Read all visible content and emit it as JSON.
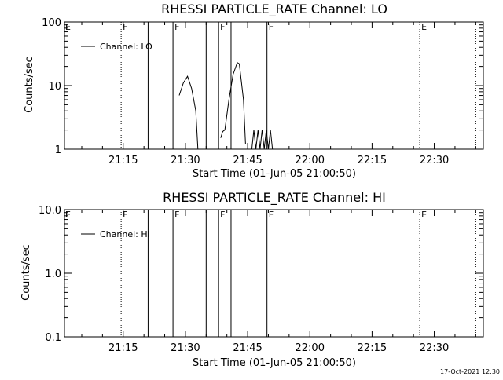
{
  "timestamp": "17-Oct-2021 12:30",
  "chart_data": [
    {
      "type": "line",
      "title": "RHESSI PARTICLE_RATE Channel: LO",
      "xlabel": "Start Time (01-Jun-05 21:00:50)",
      "ylabel": "Counts/sec",
      "yscale": "log",
      "ylim": [
        1,
        100
      ],
      "ytick_values": [
        1,
        10,
        100
      ],
      "ytick_labels": [
        "1",
        "10",
        "100"
      ],
      "xlim": [
        "21:00:50",
        "22:41:50"
      ],
      "xtick_labels": [
        "21:15",
        "21:30",
        "21:45",
        "22:00",
        "22:15",
        "22:30"
      ],
      "legend": {
        "label": "Channel: LO",
        "position": "top-left"
      },
      "flags": [
        {
          "label": "E",
          "time": "21:00:50",
          "style": "none"
        },
        {
          "label": "F",
          "time": "21:14:30",
          "style": "dotted"
        },
        {
          "label": "",
          "time": "21:21:00",
          "style": "solid"
        },
        {
          "label": "F",
          "time": "21:27:00",
          "style": "solid"
        },
        {
          "label": "",
          "time": "21:35:00",
          "style": "solid"
        },
        {
          "label": "F",
          "time": "21:38:00",
          "style": "solid"
        },
        {
          "label": "",
          "time": "21:41:00",
          "style": "solid"
        },
        {
          "label": "F",
          "time": "21:49:40",
          "style": "solid"
        },
        {
          "label": "E",
          "time": "22:26:30",
          "style": "dotted"
        },
        {
          "label": "",
          "time": "22:40:00",
          "style": "dotted"
        }
      ],
      "series": [
        {
          "segments": [
            {
              "x": [
                "21:28:30",
                "21:29:30",
                "21:30:30",
                "21:31:30",
                "21:32:30",
                "21:33:00"
              ],
              "y": [
                7,
                11,
                14,
                9,
                4,
                1
              ]
            },
            {
              "x": [
                "21:38:30",
                "21:39:00",
                "21:39:30",
                "21:40:30",
                "21:41:30",
                "21:42:30",
                "21:43:00",
                "21:44:00",
                "21:44:30"
              ],
              "y": [
                1.5,
                1.9,
                2,
                6,
                15,
                23,
                22,
                6,
                1.2
              ]
            },
            {
              "x": [
                "21:46:00",
                "21:46:30",
                "21:47:00",
                "21:47:30",
                "21:48:00",
                "21:48:30",
                "21:49:00",
                "21:49:30",
                "21:50:00",
                "21:50:30",
                "21:51:00"
              ],
              "y": [
                1,
                2,
                1,
                2,
                1,
                2,
                1,
                2,
                1,
                2,
                1
              ]
            }
          ]
        }
      ]
    },
    {
      "type": "line",
      "title": "RHESSI PARTICLE_RATE Channel: HI",
      "xlabel": "Start Time (01-Jun-05 21:00:50)",
      "ylabel": "Counts/sec",
      "yscale": "log",
      "ylim": [
        0.1,
        10
      ],
      "ytick_values": [
        0.1,
        1,
        10
      ],
      "ytick_labels": [
        "0.1",
        "1.0",
        "10.0"
      ],
      "xlim": [
        "21:00:50",
        "22:41:50"
      ],
      "xtick_labels": [
        "21:15",
        "21:30",
        "21:45",
        "22:00",
        "22:15",
        "22:30"
      ],
      "legend": {
        "label": "Channel: HI",
        "position": "top-left"
      },
      "flags": [
        {
          "label": "E",
          "time": "21:00:50",
          "style": "none"
        },
        {
          "label": "F",
          "time": "21:14:30",
          "style": "dotted"
        },
        {
          "label": "",
          "time": "21:21:00",
          "style": "solid"
        },
        {
          "label": "F",
          "time": "21:27:00",
          "style": "solid"
        },
        {
          "label": "",
          "time": "21:35:00",
          "style": "solid"
        },
        {
          "label": "F",
          "time": "21:38:00",
          "style": "solid"
        },
        {
          "label": "",
          "time": "21:41:00",
          "style": "solid"
        },
        {
          "label": "F",
          "time": "21:49:40",
          "style": "solid"
        },
        {
          "label": "E",
          "time": "22:26:30",
          "style": "dotted"
        },
        {
          "label": "",
          "time": "22:40:00",
          "style": "dotted"
        }
      ],
      "series": [
        {
          "segments": []
        }
      ]
    }
  ]
}
